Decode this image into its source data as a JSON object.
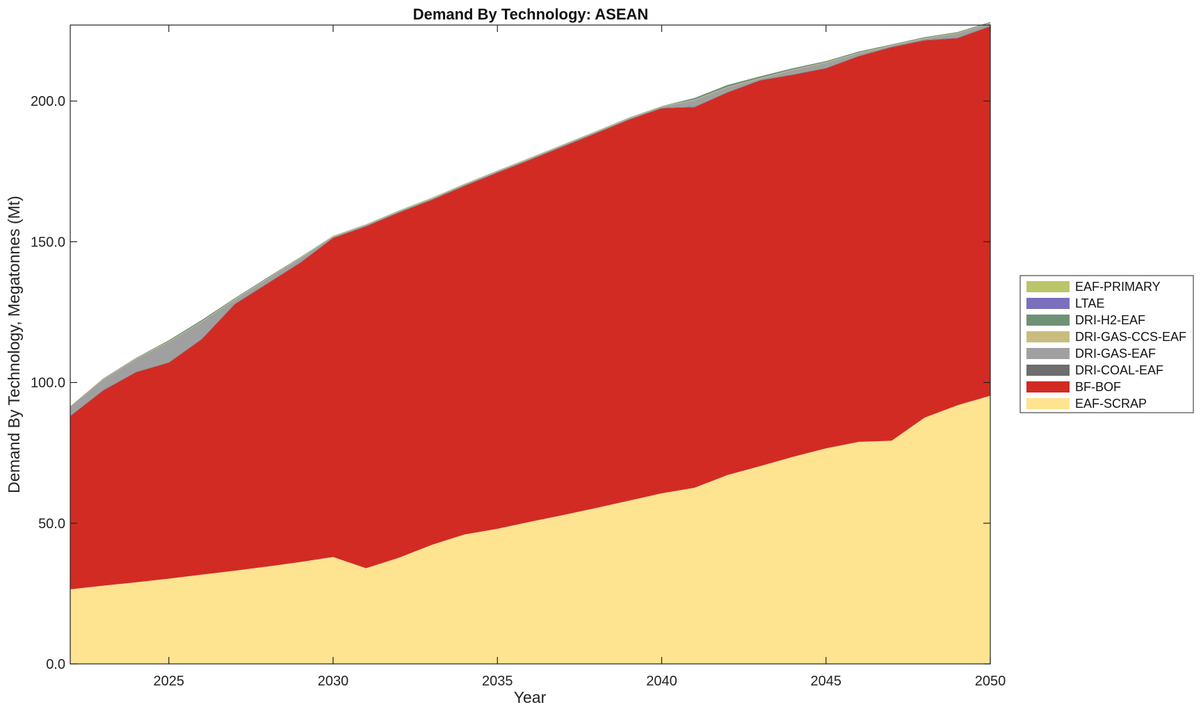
{
  "chart_data": {
    "type": "area",
    "title": "Demand By Technology: ASEAN",
    "xlabel": "Year",
    "ylabel": "Demand By Technology, Megatonnes (Mt)",
    "xlim": [
      2022,
      2050
    ],
    "ylim": [
      0,
      227
    ],
    "x_ticks": [
      "2025",
      "2030",
      "2035",
      "2040",
      "2045",
      "2050"
    ],
    "x_tick_values": [
      2025,
      2030,
      2035,
      2040,
      2045,
      2050
    ],
    "y_ticks": [
      "0.0",
      "50.0",
      "100.0",
      "150.0",
      "200.0"
    ],
    "y_tick_values": [
      0,
      50,
      100,
      150,
      200
    ],
    "stacked": true,
    "grid": false,
    "legend_position": "right",
    "x": [
      2022,
      2023,
      2024,
      2025,
      2026,
      2027,
      2028,
      2029,
      2030,
      2031,
      2032,
      2033,
      2034,
      2035,
      2036,
      2037,
      2038,
      2039,
      2040,
      2041,
      2042,
      2043,
      2044,
      2045,
      2046,
      2047,
      2048,
      2049,
      2050
    ],
    "series": [
      {
        "name": "EAF-SCRAP",
        "color": "#fee391",
        "values": [
          26.5,
          27.8,
          29.0,
          30.3,
          31.7,
          33.1,
          34.6,
          36.2,
          38.0,
          34.0,
          37.7,
          42.3,
          46.0,
          48.0,
          50.5,
          52.9,
          55.4,
          58.0,
          60.6,
          62.6,
          67.1,
          70.3,
          73.6,
          76.6,
          78.9,
          79.3,
          87.5,
          91.9,
          95.3
        ]
      },
      {
        "name": "BF-BOF",
        "color": "#d22b24",
        "values": [
          61.5,
          69.3,
          74.6,
          76.7,
          83.6,
          94.6,
          100.5,
          106.3,
          113.3,
          121.4,
          122.6,
          122.5,
          123.8,
          126.5,
          128.6,
          130.9,
          133.1,
          135.3,
          136.8,
          135.2,
          135.9,
          137.0,
          135.7,
          135.0,
          137.0,
          139.8,
          134.0,
          130.4,
          131.2
        ]
      },
      {
        "name": "DRI-COAL-EAF",
        "color": "#6e6e6e",
        "values": [
          0.2,
          0.2,
          0.2,
          0.2,
          0.2,
          0.2,
          0.2,
          0.2,
          0.2,
          0.2,
          0.2,
          0.2,
          0.2,
          0.2,
          0.2,
          0.2,
          0.2,
          0.2,
          0.2,
          0.2,
          0.2,
          0.2,
          0.2,
          0.2,
          0.2,
          0.2,
          0.2,
          0.2,
          0.2
        ]
      },
      {
        "name": "DRI-GAS-EAF",
        "color": "#a0a0a0",
        "values": [
          3.2,
          3.8,
          4.5,
          7.2,
          6.0,
          1.5,
          1.5,
          1.4,
          0.3,
          0.3,
          0.3,
          0.3,
          0.3,
          0.3,
          0.3,
          0.3,
          0.3,
          0.3,
          0.3,
          2.3,
          1.6,
          0.5,
          1.5,
          1.8,
          0.9,
          0.3,
          0.5,
          1.5,
          0.9
        ]
      },
      {
        "name": "DRI-GAS-CCS-EAF",
        "color": "#c8bd7e",
        "values": [
          0.2,
          0.2,
          0.2,
          0.2,
          0.2,
          0.2,
          0.2,
          0.2,
          0.2,
          0.2,
          0.2,
          0.2,
          0.2,
          0.2,
          0.2,
          0.2,
          0.2,
          0.2,
          0.2,
          0.2,
          0.2,
          0.2,
          0.2,
          0.2,
          0.2,
          0.2,
          0.2,
          0.2,
          0.2
        ]
      },
      {
        "name": "DRI-H2-EAF",
        "color": "#6f9277",
        "values": [
          0.0,
          0.1,
          0.2,
          0.4,
          0.5,
          0.3,
          0.3,
          0.2,
          0.1,
          0.1,
          0.1,
          0.1,
          0.1,
          0.1,
          0.1,
          0.1,
          0.1,
          0.1,
          0.1,
          0.6,
          0.7,
          0.6,
          0.5,
          0.4,
          0.4,
          0.3,
          0.3,
          0.3,
          0.3
        ]
      },
      {
        "name": "LTAE",
        "color": "#7a70bd",
        "values": [
          0.0,
          0.0,
          0.0,
          0.0,
          0.0,
          0.0,
          0.0,
          0.0,
          0.0,
          0.0,
          0.0,
          0.0,
          0.0,
          0.0,
          0.0,
          0.0,
          0.0,
          0.0,
          0.0,
          0.0,
          0.0,
          0.0,
          0.0,
          0.0,
          0.0,
          0.0,
          0.0,
          0.0,
          0.0
        ]
      },
      {
        "name": "EAF-PRIMARY",
        "color": "#bcc56a",
        "values": [
          0.0,
          0.0,
          0.0,
          0.0,
          0.0,
          0.0,
          0.0,
          0.0,
          0.0,
          0.0,
          0.0,
          0.0,
          0.0,
          0.0,
          0.0,
          0.0,
          0.0,
          0.0,
          0.0,
          0.0,
          0.0,
          0.0,
          0.0,
          0.0,
          0.0,
          0.0,
          0.0,
          0.0,
          0.0
        ]
      }
    ],
    "legend_order": [
      "EAF-PRIMARY",
      "LTAE",
      "DRI-H2-EAF",
      "DRI-GAS-CCS-EAF",
      "DRI-GAS-EAF",
      "DRI-COAL-EAF",
      "BF-BOF",
      "EAF-SCRAP"
    ]
  }
}
